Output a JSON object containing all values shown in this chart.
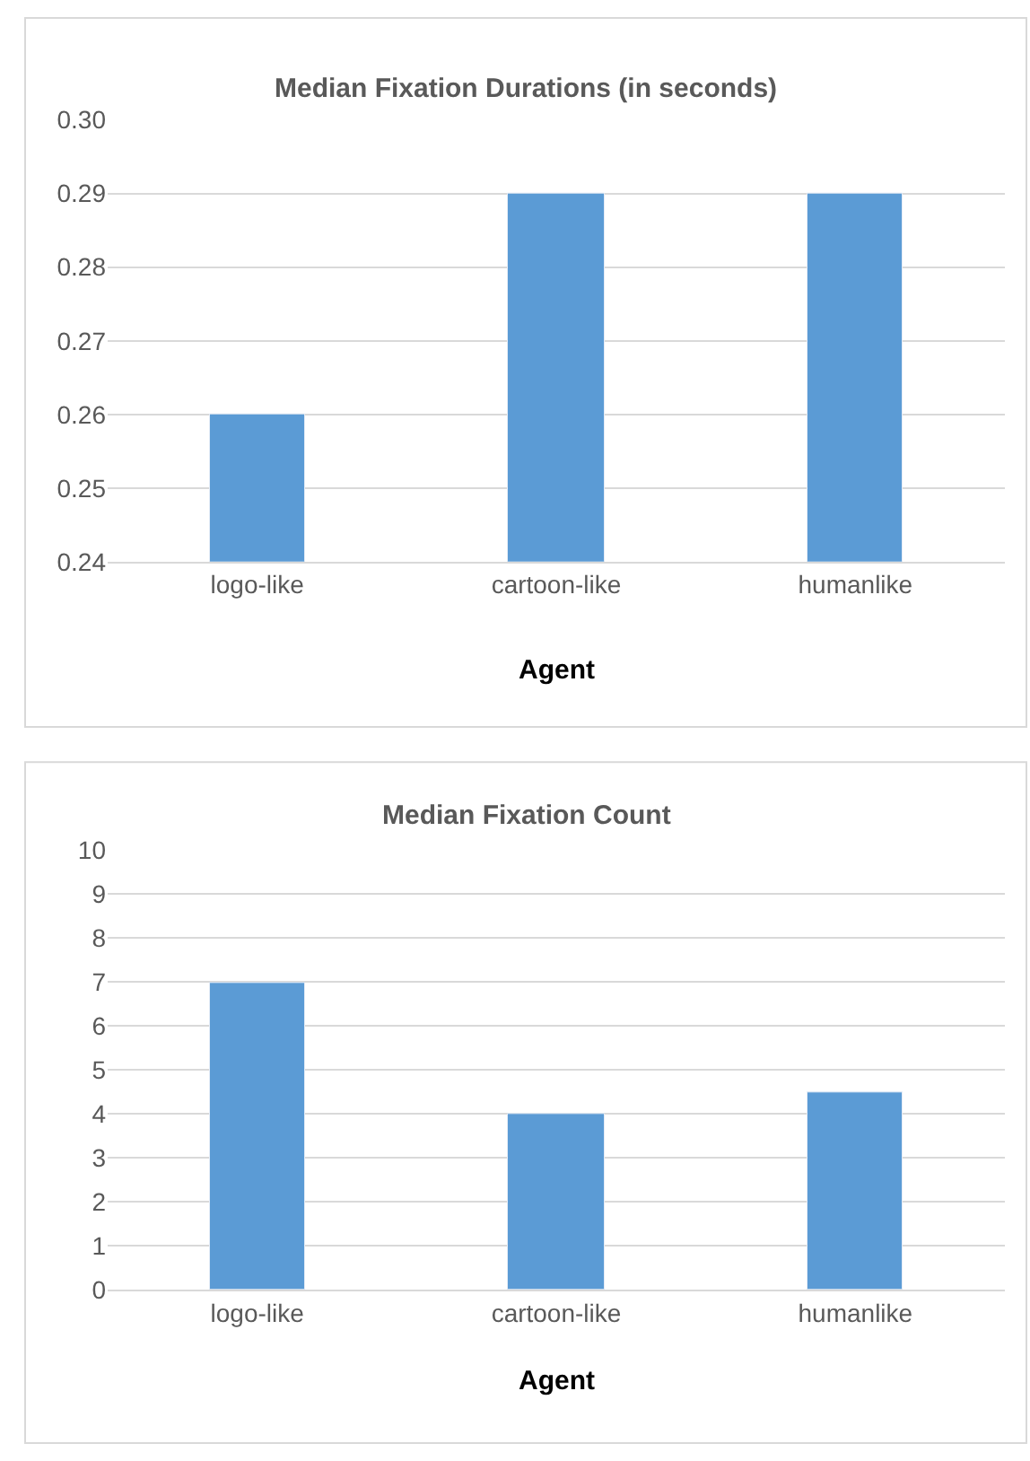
{
  "chart_data": [
    {
      "type": "bar",
      "title": "Median Fixation Durations (in seconds)",
      "xlabel": "Agent",
      "categories": [
        "logo-like",
        "cartoon-like",
        "humanlike"
      ],
      "values": [
        0.26,
        0.29,
        0.29
      ],
      "color": "#5b9bd5",
      "ylim": [
        0.24,
        0.3
      ],
      "yticks": [
        {
          "value": 0.24,
          "label": "0.24"
        },
        {
          "value": 0.25,
          "label": "0.25"
        },
        {
          "value": 0.26,
          "label": "0.26"
        },
        {
          "value": 0.27,
          "label": "0.27"
        },
        {
          "value": 0.28,
          "label": "0.28"
        },
        {
          "value": 0.29,
          "label": "0.29"
        },
        {
          "value": 0.3,
          "label": "0.30"
        }
      ],
      "grid": "y",
      "legend": false
    },
    {
      "type": "bar",
      "title": "Median Fixation Count",
      "xlabel": "Agent",
      "categories": [
        "logo-like",
        "cartoon-like",
        "humanlike"
      ],
      "values": [
        7,
        4,
        4.5
      ],
      "color": "#5b9bd5",
      "ylim": [
        0,
        10
      ],
      "yticks": [
        0,
        1,
        2,
        3,
        4,
        5,
        6,
        7,
        8,
        9,
        10
      ],
      "grid": "y",
      "legend": false
    }
  ]
}
